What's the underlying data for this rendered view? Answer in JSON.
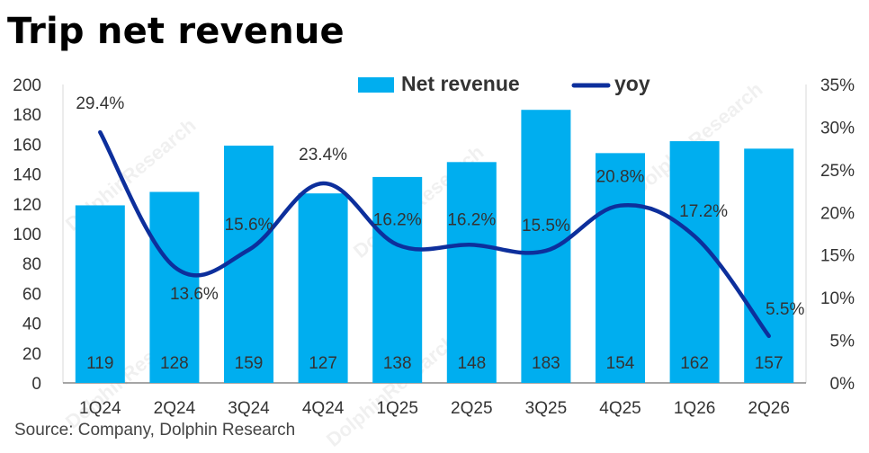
{
  "title": "Trip net revenue",
  "source": "Source: Company, Dolphin Research",
  "watermark": "DolphinResearch",
  "colors": {
    "bar": "#00AEEF",
    "line": "#0D2F9C",
    "text": "#333333",
    "axis": "#888888"
  },
  "chart_data": {
    "type": "bar",
    "categories": [
      "1Q24",
      "2Q24",
      "3Q24",
      "4Q24",
      "1Q25",
      "2Q25",
      "3Q25",
      "4Q25",
      "1Q26",
      "2Q26"
    ],
    "series": [
      {
        "name": "Net revenue",
        "type": "bar",
        "axis": "left",
        "values": [
          119,
          128,
          159,
          127,
          138,
          148,
          183,
          154,
          162,
          157
        ],
        "labels": [
          "119",
          "128",
          "159",
          "127",
          "138",
          "148",
          "183",
          "154",
          "162",
          "157"
        ]
      },
      {
        "name": "yoy",
        "type": "line",
        "axis": "right",
        "values": [
          29.4,
          13.6,
          15.6,
          23.4,
          16.2,
          16.2,
          15.5,
          20.8,
          17.2,
          5.5
        ],
        "labels": [
          "29.4%",
          "13.6%",
          "15.6%",
          "23.4%",
          "16.2%",
          "16.2%",
          "15.5%",
          "20.8%",
          "17.2%",
          "5.5%"
        ]
      }
    ],
    "y_left": {
      "range": [
        0,
        200
      ],
      "ticks": [
        "0",
        "20",
        "40",
        "60",
        "80",
        "100",
        "120",
        "140",
        "160",
        "180",
        "200"
      ]
    },
    "y_right": {
      "range": [
        0,
        35
      ],
      "ticks": [
        "0%",
        "5%",
        "10%",
        "15%",
        "20%",
        "25%",
        "30%",
        "35%"
      ]
    },
    "legend": {
      "position": "top"
    },
    "grid": false
  }
}
